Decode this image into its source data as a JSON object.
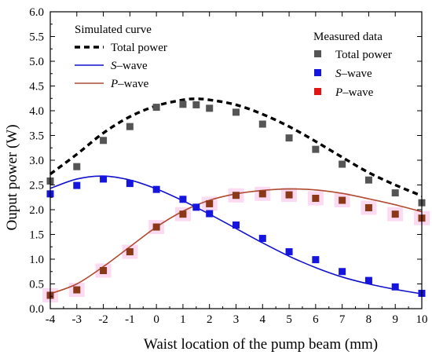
{
  "chart_data": {
    "type": "line",
    "xlabel": "Waist location of the pump beam (mm)",
    "ylabel": "Ouput power (W)",
    "xlim": [
      -4,
      10
    ],
    "ylim": [
      0.0,
      6.0
    ],
    "x_ticks": [
      "-4",
      "-3",
      "-2",
      "-1",
      "0",
      "1",
      "2",
      "3",
      "4",
      "5",
      "6",
      "7",
      "8",
      "9",
      "10"
    ],
    "y_ticks": [
      "0.0",
      "0.5",
      "1.0",
      "1.5",
      "2.0",
      "2.5",
      "3.0",
      "3.5",
      "4.0",
      "4.5",
      "5.0",
      "5.5",
      "6.0"
    ],
    "grid": false,
    "simulated_legend": {
      "title": "Simulated curve",
      "placement": "top-left",
      "entries": [
        "Total power",
        "S–wave",
        "P–wave"
      ]
    },
    "measured_legend": {
      "title": "Measured data",
      "placement": "top-right",
      "entries": [
        "Total power",
        "S–wave",
        "P–wave"
      ]
    },
    "curves": [
      {
        "legend": "Total power",
        "color": "#000000",
        "style": "dashed",
        "x": [
          -4,
          -3,
          -2,
          -1,
          0,
          1,
          1.5,
          2,
          3,
          4,
          5,
          6,
          7,
          8,
          9,
          10
        ],
        "y": [
          2.72,
          3.12,
          3.55,
          3.88,
          4.1,
          4.22,
          4.24,
          4.22,
          4.12,
          3.93,
          3.68,
          3.38,
          3.06,
          2.75,
          2.5,
          2.28
        ]
      },
      {
        "legend": "S–wave",
        "color": "#1111cc",
        "style": "solid",
        "x": [
          -4,
          -3,
          -2,
          -1,
          0,
          1,
          2,
          3,
          4,
          5,
          6,
          7,
          8,
          9,
          10
        ],
        "y": [
          2.43,
          2.62,
          2.68,
          2.6,
          2.42,
          2.18,
          1.91,
          1.62,
          1.33,
          1.06,
          0.83,
          0.64,
          0.5,
          0.39,
          0.3
        ]
      },
      {
        "legend": "P–wave",
        "color": "#b04a30",
        "style": "solid",
        "x": [
          -4,
          -3,
          -2,
          -1,
          0,
          1,
          2,
          3,
          4,
          5,
          6,
          7,
          8,
          9,
          10
        ],
        "y": [
          0.3,
          0.5,
          0.85,
          1.25,
          1.65,
          1.97,
          2.19,
          2.32,
          2.39,
          2.42,
          2.4,
          2.33,
          2.22,
          2.1,
          1.96
        ]
      }
    ],
    "measured": [
      {
        "legend": "Total power",
        "color": "#555555",
        "x": [
          -4,
          -3,
          -2,
          -1,
          0,
          1,
          1.5,
          2,
          3,
          4,
          5,
          6,
          7,
          8,
          9,
          10
        ],
        "y": [
          2.58,
          2.87,
          3.4,
          3.68,
          4.07,
          4.13,
          4.12,
          4.05,
          3.97,
          3.73,
          3.45,
          3.22,
          2.92,
          2.6,
          2.34,
          2.14
        ]
      },
      {
        "legend": "S–wave",
        "color": "#1515dd",
        "x": [
          -4,
          -3,
          -2,
          -1,
          0,
          1,
          1.5,
          2,
          3,
          4,
          5,
          6,
          7,
          8,
          9,
          10
        ],
        "y": [
          2.32,
          2.49,
          2.62,
          2.53,
          2.41,
          2.21,
          2.05,
          1.92,
          1.69,
          1.42,
          1.15,
          0.99,
          0.75,
          0.57,
          0.44,
          0.31
        ]
      },
      {
        "legend": "P–wave",
        "color": "#e01515",
        "display_color": "#8a3818",
        "x": [
          -4,
          -3,
          -2,
          -1,
          0,
          1,
          2,
          3,
          4,
          5,
          6,
          7,
          8,
          9,
          10
        ],
        "y": [
          0.27,
          0.38,
          0.77,
          1.15,
          1.65,
          1.91,
          2.12,
          2.29,
          2.32,
          2.3,
          2.23,
          2.19,
          2.04,
          1.91,
          1.83
        ]
      }
    ]
  }
}
